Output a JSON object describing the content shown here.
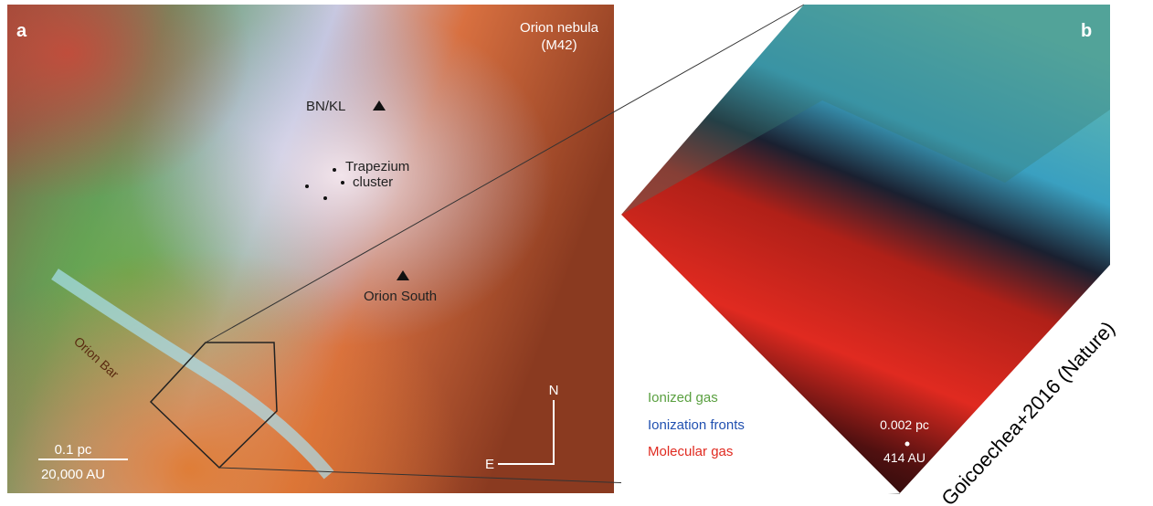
{
  "panel_a": {
    "label": "a",
    "object": [
      "Orion nebula",
      "(M42)"
    ],
    "bn_kl": "BN/KL",
    "trapezium": [
      "Trapezium",
      "cluster"
    ],
    "orion_south": "Orion South",
    "orion_bar": "Orion Bar",
    "scale": [
      "0.1 pc",
      "20,000 AU"
    ],
    "compass": [
      "N",
      "E"
    ]
  },
  "panel_b": {
    "label": "b",
    "legend": [
      "Ionized gas",
      "Ionization fronts",
      "Molecular gas"
    ],
    "scale": [
      "0.002 pc",
      "414 AU"
    ]
  },
  "credit": "Goicoechea+2016 (Nature)"
}
